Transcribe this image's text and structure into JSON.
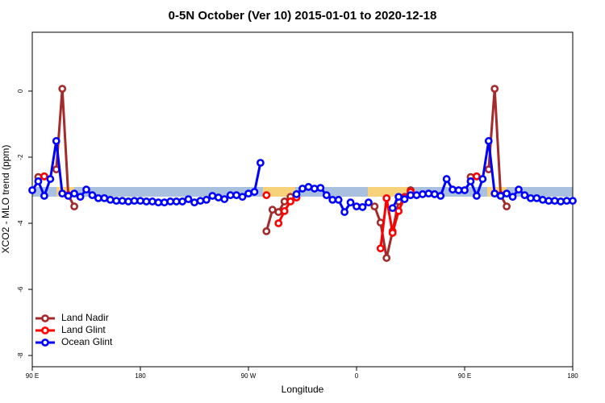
{
  "chart_data": {
    "type": "line",
    "title": "0-5N October (Ver 10)   2015-01-01 to 2020-12-18",
    "x_label": "Longitude",
    "y_label": "XCO2 - MLO trend (ppm)",
    "x": [
      90,
      95,
      100,
      105,
      110,
      115,
      120,
      125,
      130,
      135,
      140,
      145,
      150,
      155,
      160,
      165,
      170,
      175,
      180,
      185,
      190,
      195,
      200,
      205,
      210,
      215,
      220,
      225,
      230,
      235,
      240,
      245,
      250,
      255,
      260,
      265,
      270,
      275,
      280,
      285,
      290,
      295,
      300,
      305,
      310,
      315,
      320,
      325,
      330,
      335,
      340,
      345,
      350,
      355,
      360,
      365,
      370,
      375,
      380,
      385,
      390,
      395,
      400,
      405,
      410,
      415,
      420,
      425,
      430,
      435,
      440,
      445,
      450,
      455,
      460,
      465,
      470,
      475,
      480,
      485,
      490,
      495,
      500,
      505,
      510,
      515,
      520,
      525,
      530,
      535,
      540
    ],
    "xlim": [
      90,
      540
    ],
    "xticks": [
      {
        "value": 90,
        "label": "90 E"
      },
      180,
      {
        "value": 270,
        "label": "90 W"
      },
      {
        "value": 360,
        "label": "0"
      },
      {
        "value": 450,
        "label": "90 E"
      },
      {
        "value": 540,
        "label": "180"
      }
    ],
    "ylim": [
      -8.34,
      1.78
    ],
    "yticks": [
      0,
      -2,
      -4,
      -6,
      -8
    ],
    "legend": "lower left",
    "series": [
      {
        "name": "Land Nadir",
        "color": "#a52a2a",
        "values": [
          null,
          -2.6,
          -2.58,
          null,
          -2.37,
          0.07,
          -3.15,
          -3.49,
          null,
          null,
          null,
          null,
          null,
          null,
          null,
          null,
          null,
          null,
          null,
          null,
          null,
          null,
          null,
          null,
          null,
          null,
          null,
          null,
          null,
          null,
          null,
          null,
          null,
          null,
          null,
          null,
          null,
          null,
          null,
          -4.24,
          -3.59,
          -3.66,
          -3.34,
          -3.2,
          null,
          null,
          null,
          null,
          null,
          null,
          null,
          null,
          null,
          null,
          null,
          null,
          null,
          -3.49,
          -3.98,
          -5.05,
          -4.24,
          -3.34,
          -3.2,
          -3.0,
          null,
          null,
          null,
          null,
          null,
          null,
          null,
          null,
          null,
          -2.6,
          -2.58,
          null,
          -2.37,
          0.07,
          -3.15,
          -3.49,
          null,
          null,
          null,
          null,
          null,
          null,
          null,
          null,
          null,
          null,
          null
        ]
      },
      {
        "name": "Land Glint",
        "color": "#ff0000",
        "values": [
          null,
          null,
          -2.58,
          null,
          null,
          null,
          -3.15,
          null,
          null,
          null,
          null,
          null,
          null,
          null,
          null,
          null,
          null,
          null,
          null,
          null,
          null,
          null,
          null,
          null,
          null,
          null,
          null,
          null,
          null,
          null,
          null,
          null,
          null,
          null,
          null,
          null,
          null,
          null,
          null,
          -3.15,
          null,
          -4.0,
          -3.63,
          -3.34,
          -3.22,
          null,
          null,
          null,
          null,
          null,
          null,
          null,
          null,
          null,
          null,
          null,
          null,
          null,
          -4.76,
          -3.24,
          -4.29,
          -3.63,
          -3.22,
          -3.05,
          null,
          null,
          null,
          null,
          null,
          null,
          null,
          null,
          null,
          null,
          -2.58,
          null,
          null,
          null,
          -3.15,
          null,
          null,
          null,
          null,
          null,
          null,
          null,
          null,
          null,
          null,
          null,
          null
        ]
      },
      {
        "name": "Ocean Glint",
        "color": "#0000ff",
        "values": [
          -3.0,
          -2.73,
          -3.17,
          -2.66,
          -1.51,
          -3.1,
          -3.17,
          -3.1,
          -3.2,
          -2.98,
          -3.15,
          -3.24,
          -3.24,
          -3.29,
          -3.32,
          -3.32,
          -3.34,
          -3.32,
          -3.32,
          -3.34,
          -3.34,
          -3.37,
          -3.37,
          -3.34,
          -3.34,
          -3.34,
          -3.27,
          -3.37,
          -3.32,
          -3.29,
          -3.17,
          -3.22,
          -3.27,
          -3.15,
          -3.15,
          -3.2,
          -3.1,
          -3.05,
          -2.17,
          null,
          null,
          null,
          null,
          null,
          -3.12,
          -2.95,
          -2.9,
          -2.95,
          -2.93,
          -3.15,
          -3.29,
          -3.29,
          -3.66,
          -3.37,
          -3.49,
          -3.51,
          -3.37,
          null,
          null,
          null,
          -3.54,
          -3.2,
          -3.27,
          -3.15,
          -3.15,
          -3.12,
          -3.1,
          -3.12,
          -3.17,
          -2.66,
          -2.98,
          -3.0,
          -3.0,
          -2.73,
          -3.17,
          -2.66,
          -1.51,
          -3.1,
          -3.17,
          -3.1,
          -3.2,
          -2.98,
          -3.15,
          -3.24,
          -3.24,
          -3.29,
          -3.32,
          -3.32,
          -3.34,
          -3.32,
          -3.32
        ]
      }
    ]
  }
}
